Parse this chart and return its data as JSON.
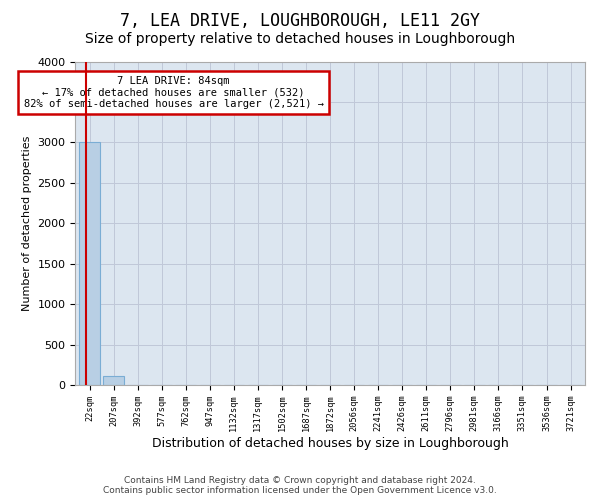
{
  "title": "7, LEA DRIVE, LOUGHBOROUGH, LE11 2GY",
  "subtitle": "Size of property relative to detached houses in Loughborough",
  "xlabel": "Distribution of detached houses by size in Loughborough",
  "ylabel": "Number of detached properties",
  "footer_line1": "Contains HM Land Registry data © Crown copyright and database right 2024.",
  "footer_line2": "Contains public sector information licensed under the Open Government Licence v3.0.",
  "bin_labels": [
    "22sqm",
    "207sqm",
    "392sqm",
    "577sqm",
    "762sqm",
    "947sqm",
    "1132sqm",
    "1317sqm",
    "1502sqm",
    "1687sqm",
    "1872sqm",
    "2056sqm",
    "2241sqm",
    "2426sqm",
    "2611sqm",
    "2796sqm",
    "2981sqm",
    "3166sqm",
    "3351sqm",
    "3536sqm",
    "3721sqm"
  ],
  "bar_values": [
    3000,
    110,
    5,
    2,
    1,
    1,
    1,
    0,
    1,
    0,
    0,
    0,
    0,
    0,
    0,
    0,
    0,
    0,
    0,
    0,
    0
  ],
  "bar_color": "#b8cfe4",
  "bar_edge_color": "#7aadd4",
  "property_line_color": "#cc0000",
  "ylim": [
    0,
    4000
  ],
  "yticks": [
    0,
    500,
    1000,
    1500,
    2000,
    2500,
    3000,
    3500,
    4000
  ],
  "annotation_text": "7 LEA DRIVE: 84sqm\n← 17% of detached houses are smaller (532)\n82% of semi-detached houses are larger (2,521) →",
  "annotation_box_color": "#cc0000",
  "grid_color": "#c0c8d8",
  "background_color": "#dce6f0",
  "title_fontsize": 12,
  "subtitle_fontsize": 10,
  "footer_fontsize": 6.5
}
